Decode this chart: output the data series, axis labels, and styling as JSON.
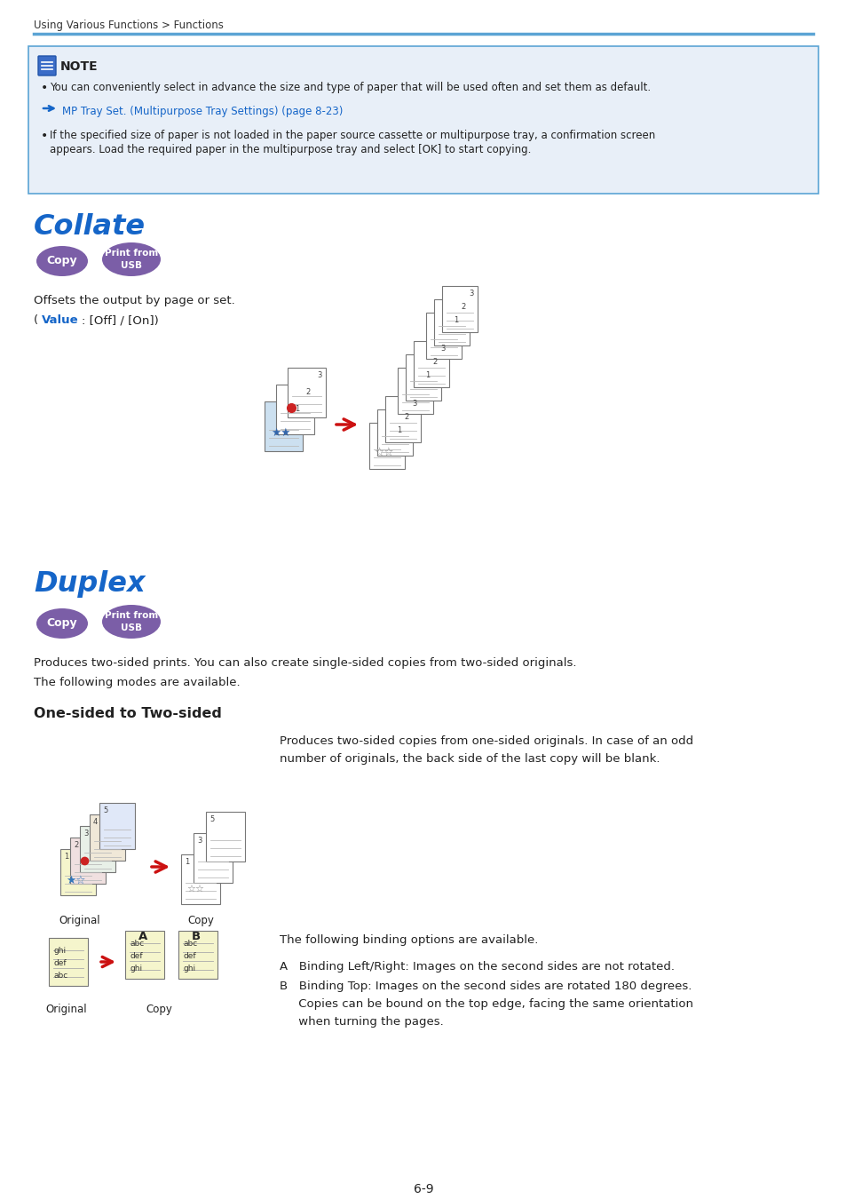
{
  "page_bg": "#ffffff",
  "header_text": "Using Various Functions > Functions",
  "header_color": "#333333",
  "header_line_color": "#5ba4d4",
  "note_bg": "#e8eff8",
  "note_border_color": "#5ba4d4",
  "note_title": "NOTE",
  "note_bullet1": "You can conveniently select in advance the size and type of paper that will be used often and set them as default.",
  "note_link": "MP Tray Set. (Multipurpose Tray Settings) (page 8-23)",
  "note_bullet2_line1": "If the specified size of paper is not loaded in the paper source cassette or multipurpose tray, a confirmation screen",
  "note_bullet2_line2": "appears. Load the required paper in the multipurpose tray and select [OK] to start copying.",
  "section1_title": "Collate",
  "title_color": "#1565c8",
  "button_color": "#7b5ea7",
  "button_text1": "Copy",
  "button_text2": "Print from\nUSB",
  "collate_desc1": "Offsets the output by page or set.",
  "collate_value_label": "Value",
  "collate_value_rest": ": [Off] / [On])",
  "section2_title": "Duplex",
  "duplex_desc1": "Produces two-sided prints. You can also create single-sided copies from two-sided originals.",
  "duplex_desc2": "The following modes are available.",
  "subsection_title": "One-sided to Two-sided",
  "onesided_desc_line1": "Produces two-sided copies from one-sided originals. In case of an odd",
  "onesided_desc_line2": "number of originals, the back side of the last copy will be blank.",
  "binding_intro": "The following binding options are available.",
  "binding_A": "A   Binding Left/Right: Images on the second sides are not rotated.",
  "binding_B_line1": "B   Binding Top: Images on the second sides are rotated 180 degrees.",
  "binding_B_line2": "     Copies can be bound on the top edge, facing the same orientation",
  "binding_B_line3": "     when turning the pages.",
  "page_number": "6-9",
  "link_color": "#1565c8",
  "text_color": "#222222",
  "value_color": "#1565c8",
  "ok_bold": "[OK]"
}
